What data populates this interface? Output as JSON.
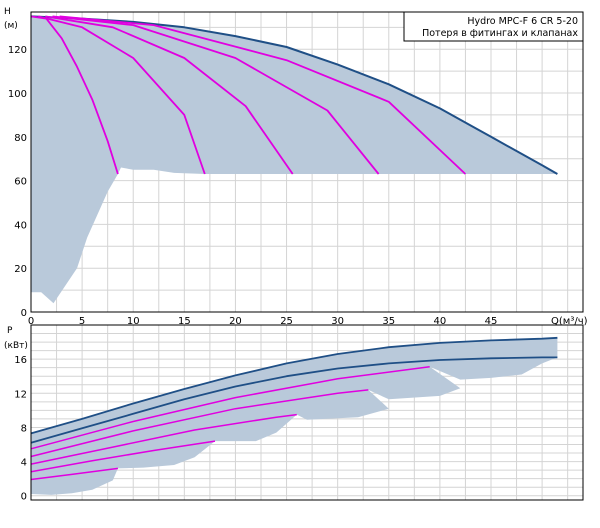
{
  "legend": {
    "title": "Hydro  MPC-F  6  CR  5-20",
    "subtitle": "Потеря в фитингах и клапанах"
  },
  "colors": {
    "band": "#b9c9da",
    "outer_curve": "#1f4f86",
    "pump_curve": "#e000e0",
    "grid": "#d4d4d4",
    "frame": "#000000"
  },
  "chart_data": [
    {
      "type": "line",
      "name": "head-curve",
      "ylabel_line1": "H",
      "ylabel_line2": "(м)",
      "xlabel": "Q(м³/ч)",
      "xlim": [
        0,
        54
      ],
      "ylim": [
        0,
        137
      ],
      "x_ticks": [
        0,
        5,
        10,
        15,
        20,
        25,
        30,
        35,
        40,
        45
      ],
      "y_ticks": [
        0,
        20,
        40,
        60,
        80,
        100,
        120
      ],
      "grid": true,
      "series": [
        {
          "values": [
            [
              0,
              135
            ],
            [
              5,
              134
            ],
            [
              10,
              132.5
            ],
            [
              15,
              130
            ],
            [
              20,
              126
            ],
            [
              25,
              121
            ],
            [
              30,
              113
            ],
            [
              35,
              104
            ],
            [
              40,
              93
            ],
            [
              45,
              80
            ],
            [
              50,
              67
            ],
            [
              51.5,
              63
            ]
          ]
        },
        {
          "values": [
            [
              0,
              135
            ],
            [
              1.5,
              134
            ],
            [
              3,
              125
            ],
            [
              4.5,
              112
            ],
            [
              6,
              97
            ],
            [
              7.5,
              78
            ],
            [
              8.5,
              63
            ]
          ]
        },
        {
          "values": [
            [
              0.7,
              135
            ],
            [
              5,
              130
            ],
            [
              10,
              116
            ],
            [
              15,
              90
            ],
            [
              17,
              63
            ]
          ]
        },
        {
          "values": [
            [
              1.4,
              135
            ],
            [
              8,
              130
            ],
            [
              15,
              116
            ],
            [
              21,
              94
            ],
            [
              25.6,
              63
            ]
          ]
        },
        {
          "values": [
            [
              2.1,
              135
            ],
            [
              10,
              131
            ],
            [
              20,
              116
            ],
            [
              29,
              92
            ],
            [
              34,
              63
            ]
          ]
        },
        {
          "values": [
            [
              2.8,
              135
            ],
            [
              12,
              131
            ],
            [
              25,
              115
            ],
            [
              35,
              96
            ],
            [
              42.5,
              63
            ]
          ]
        }
      ],
      "band_area": {
        "upper": [
          [
            0,
            135
          ],
          [
            5,
            134
          ],
          [
            10,
            132.5
          ],
          [
            15,
            130
          ],
          [
            20,
            126
          ],
          [
            25,
            121
          ],
          [
            30,
            113
          ],
          [
            35,
            104
          ],
          [
            40,
            93
          ],
          [
            45,
            80
          ],
          [
            50,
            67
          ],
          [
            51.5,
            63
          ]
        ],
        "lower": [
          [
            51.5,
            63
          ],
          [
            42.5,
            63
          ],
          [
            34,
            63
          ],
          [
            25.6,
            63
          ],
          [
            17,
            63
          ],
          [
            14,
            63.5
          ],
          [
            12,
            65
          ],
          [
            10,
            65
          ],
          [
            8.8,
            66
          ],
          [
            8.5,
            63
          ],
          [
            7.5,
            55
          ],
          [
            5.5,
            34
          ],
          [
            4.5,
            20
          ],
          [
            2.2,
            4
          ],
          [
            1.0,
            9
          ],
          [
            0,
            9
          ]
        ]
      }
    },
    {
      "type": "line",
      "name": "power-curve",
      "ylabel_line1": "P",
      "ylabel_line2": "(кВт)",
      "xlim": [
        0,
        54
      ],
      "ylim": [
        -0.5,
        20
      ],
      "y_ticks": [
        0,
        4,
        8,
        12,
        16
      ],
      "grid": true,
      "series": [
        {
          "values": [
            [
              0,
              7.3
            ],
            [
              5,
              9
            ],
            [
              10,
              10.8
            ],
            [
              15,
              12.5
            ],
            [
              20,
              14.1
            ],
            [
              25,
              15.5
            ],
            [
              30,
              16.6
            ],
            [
              35,
              17.4
            ],
            [
              40,
              17.9
            ],
            [
              45,
              18.2
            ],
            [
              50,
              18.4
            ],
            [
              51.5,
              18.5
            ]
          ]
        },
        {
          "values": [
            [
              0,
              6.2
            ],
            [
              5,
              7.9
            ],
            [
              10,
              9.6
            ],
            [
              15,
              11.3
            ],
            [
              20,
              12.8
            ],
            [
              25,
              14.0
            ],
            [
              30,
              14.9
            ],
            [
              35,
              15.5
            ],
            [
              40,
              15.9
            ],
            [
              45,
              16.1
            ],
            [
              50,
              16.2
            ],
            [
              51.5,
              16.2
            ]
          ]
        },
        {
          "values": [
            [
              0,
              5.5
            ],
            [
              10,
              8.7
            ],
            [
              20,
              11.5
            ],
            [
              30,
              13.7
            ],
            [
              39,
              15.1
            ]
          ]
        },
        {
          "values": [
            [
              0,
              4.6
            ],
            [
              10,
              7.6
            ],
            [
              20,
              10.2
            ],
            [
              30,
              12.0
            ],
            [
              33,
              12.4
            ]
          ]
        },
        {
          "values": [
            [
              0,
              3.7
            ],
            [
              8,
              5.7
            ],
            [
              16,
              7.7
            ],
            [
              24,
              9.2
            ],
            [
              26,
              9.5
            ]
          ]
        },
        {
          "values": [
            [
              0,
              2.8
            ],
            [
              6,
              4.1
            ],
            [
              12,
              5.3
            ],
            [
              18,
              6.4
            ]
          ]
        },
        {
          "values": [
            [
              0,
              1.9
            ],
            [
              4,
              2.5
            ],
            [
              8.5,
              3.2
            ]
          ]
        }
      ],
      "band_area": {
        "upper": [
          [
            0,
            7.3
          ],
          [
            5,
            9
          ],
          [
            10,
            10.8
          ],
          [
            15,
            12.5
          ],
          [
            20,
            14.1
          ],
          [
            25,
            15.5
          ],
          [
            30,
            16.6
          ],
          [
            35,
            17.4
          ],
          [
            40,
            17.9
          ],
          [
            45,
            18.2
          ],
          [
            50,
            18.4
          ],
          [
            51.5,
            18.5
          ]
        ],
        "lower": [
          [
            51.5,
            18.5
          ],
          [
            51.5,
            16.2
          ],
          [
            50,
            15.5
          ],
          [
            48,
            14.2
          ],
          [
            45,
            13.8
          ],
          [
            42,
            13.6
          ],
          [
            39,
            15.1
          ],
          [
            42,
            12.6
          ],
          [
            40,
            11.7
          ],
          [
            35,
            11.3
          ],
          [
            33,
            12.4
          ],
          [
            35,
            10.2
          ],
          [
            32,
            9.2
          ],
          [
            27,
            8.9
          ],
          [
            26,
            9.5
          ],
          [
            24,
            7.4
          ],
          [
            22,
            6.4
          ],
          [
            18,
            6.4
          ],
          [
            16,
            4.5
          ],
          [
            14,
            3.6
          ],
          [
            11,
            3.3
          ],
          [
            8.5,
            3.2
          ],
          [
            8,
            1.8
          ],
          [
            6,
            0.7
          ],
          [
            4,
            0.3
          ],
          [
            2,
            0.1
          ],
          [
            0,
            0.2
          ]
        ]
      }
    }
  ]
}
